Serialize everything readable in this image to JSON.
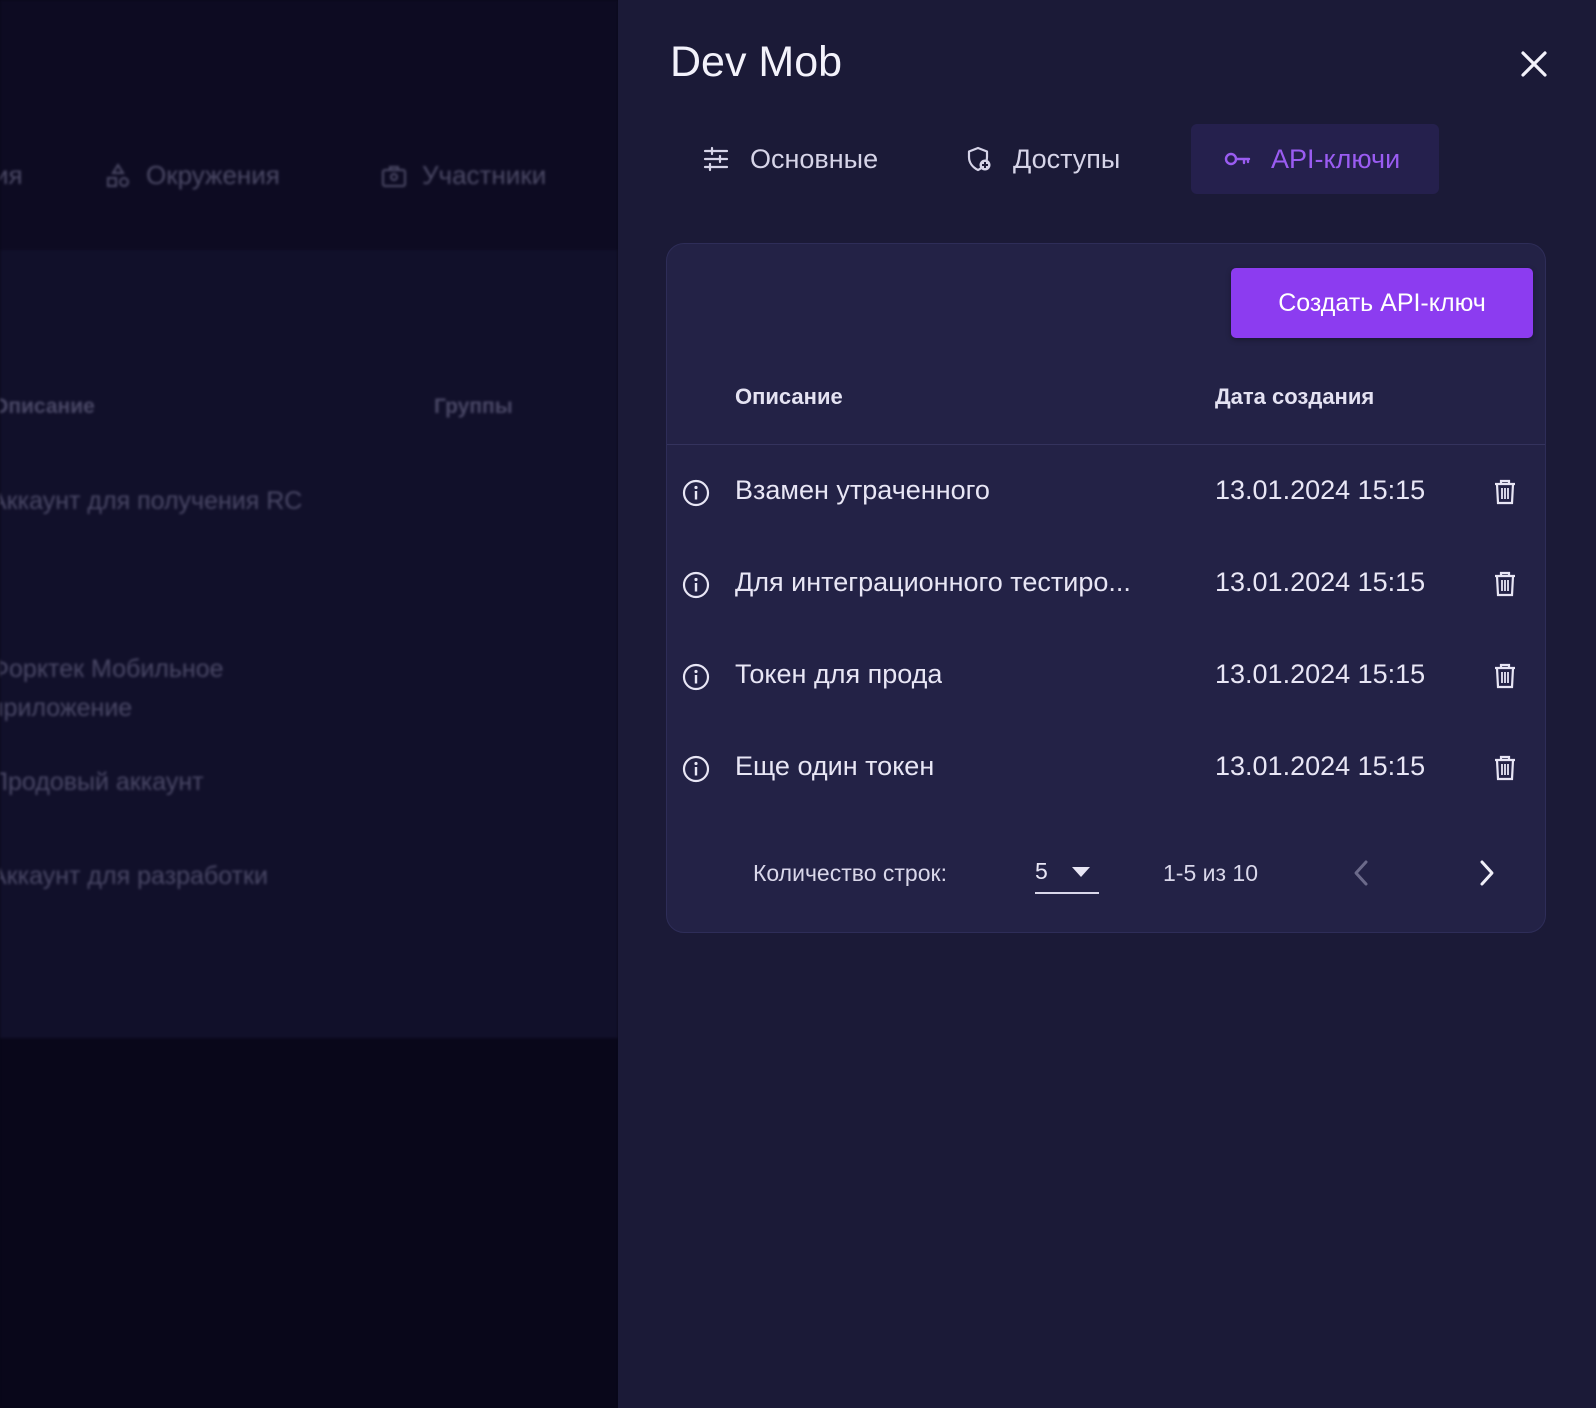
{
  "background": {
    "tabs": [
      {
        "label": "ия"
      },
      {
        "label": "Окружения",
        "icon": "environments-icon"
      },
      {
        "label": "Участники",
        "icon": "members-icon"
      }
    ],
    "columns": {
      "description": "Описание",
      "groups": "Группы"
    },
    "rows": [
      {
        "line1": "Аккаунт для получения RC",
        "line2": ""
      },
      {
        "line1": "Форктек Мобильное",
        "line2": "приложение"
      },
      {
        "line1": "Продовый аккаунт",
        "line2": ""
      },
      {
        "line1": "Аккаунт для разработки",
        "line2": ""
      }
    ]
  },
  "drawer": {
    "title": "Dev Mob",
    "close_icon": "close-icon",
    "tabs": [
      {
        "label": "Основные",
        "icon": "sliders-icon",
        "active": false
      },
      {
        "label": "Доступы",
        "icon": "shield-plus-icon",
        "active": false
      },
      {
        "label": "API-ключи",
        "icon": "key-icon",
        "active": true
      }
    ],
    "create_button": "Создать API-ключ",
    "table": {
      "headers": {
        "description": "Описание",
        "created": "Дата создания"
      },
      "rows": [
        {
          "description": "Взамен утраченного",
          "created": "13.01.2024 15:15"
        },
        {
          "description": "Для интеграционного тестиро...",
          "created": "13.01.2024 15:15"
        },
        {
          "description": "Токен для прода",
          "created": "13.01.2024 15:15"
        },
        {
          "description": "Еще один токен",
          "created": "13.01.2024 15:15"
        }
      ]
    },
    "pagination": {
      "rows_label": "Количество строк:",
      "rows_value": "5",
      "range": "1-5 из 10"
    }
  },
  "colors": {
    "accent": "#8c3cf0",
    "active_tab_text": "#9a5cf2",
    "drawer_bg": "#1b1a37",
    "card_bg": "#232246"
  }
}
